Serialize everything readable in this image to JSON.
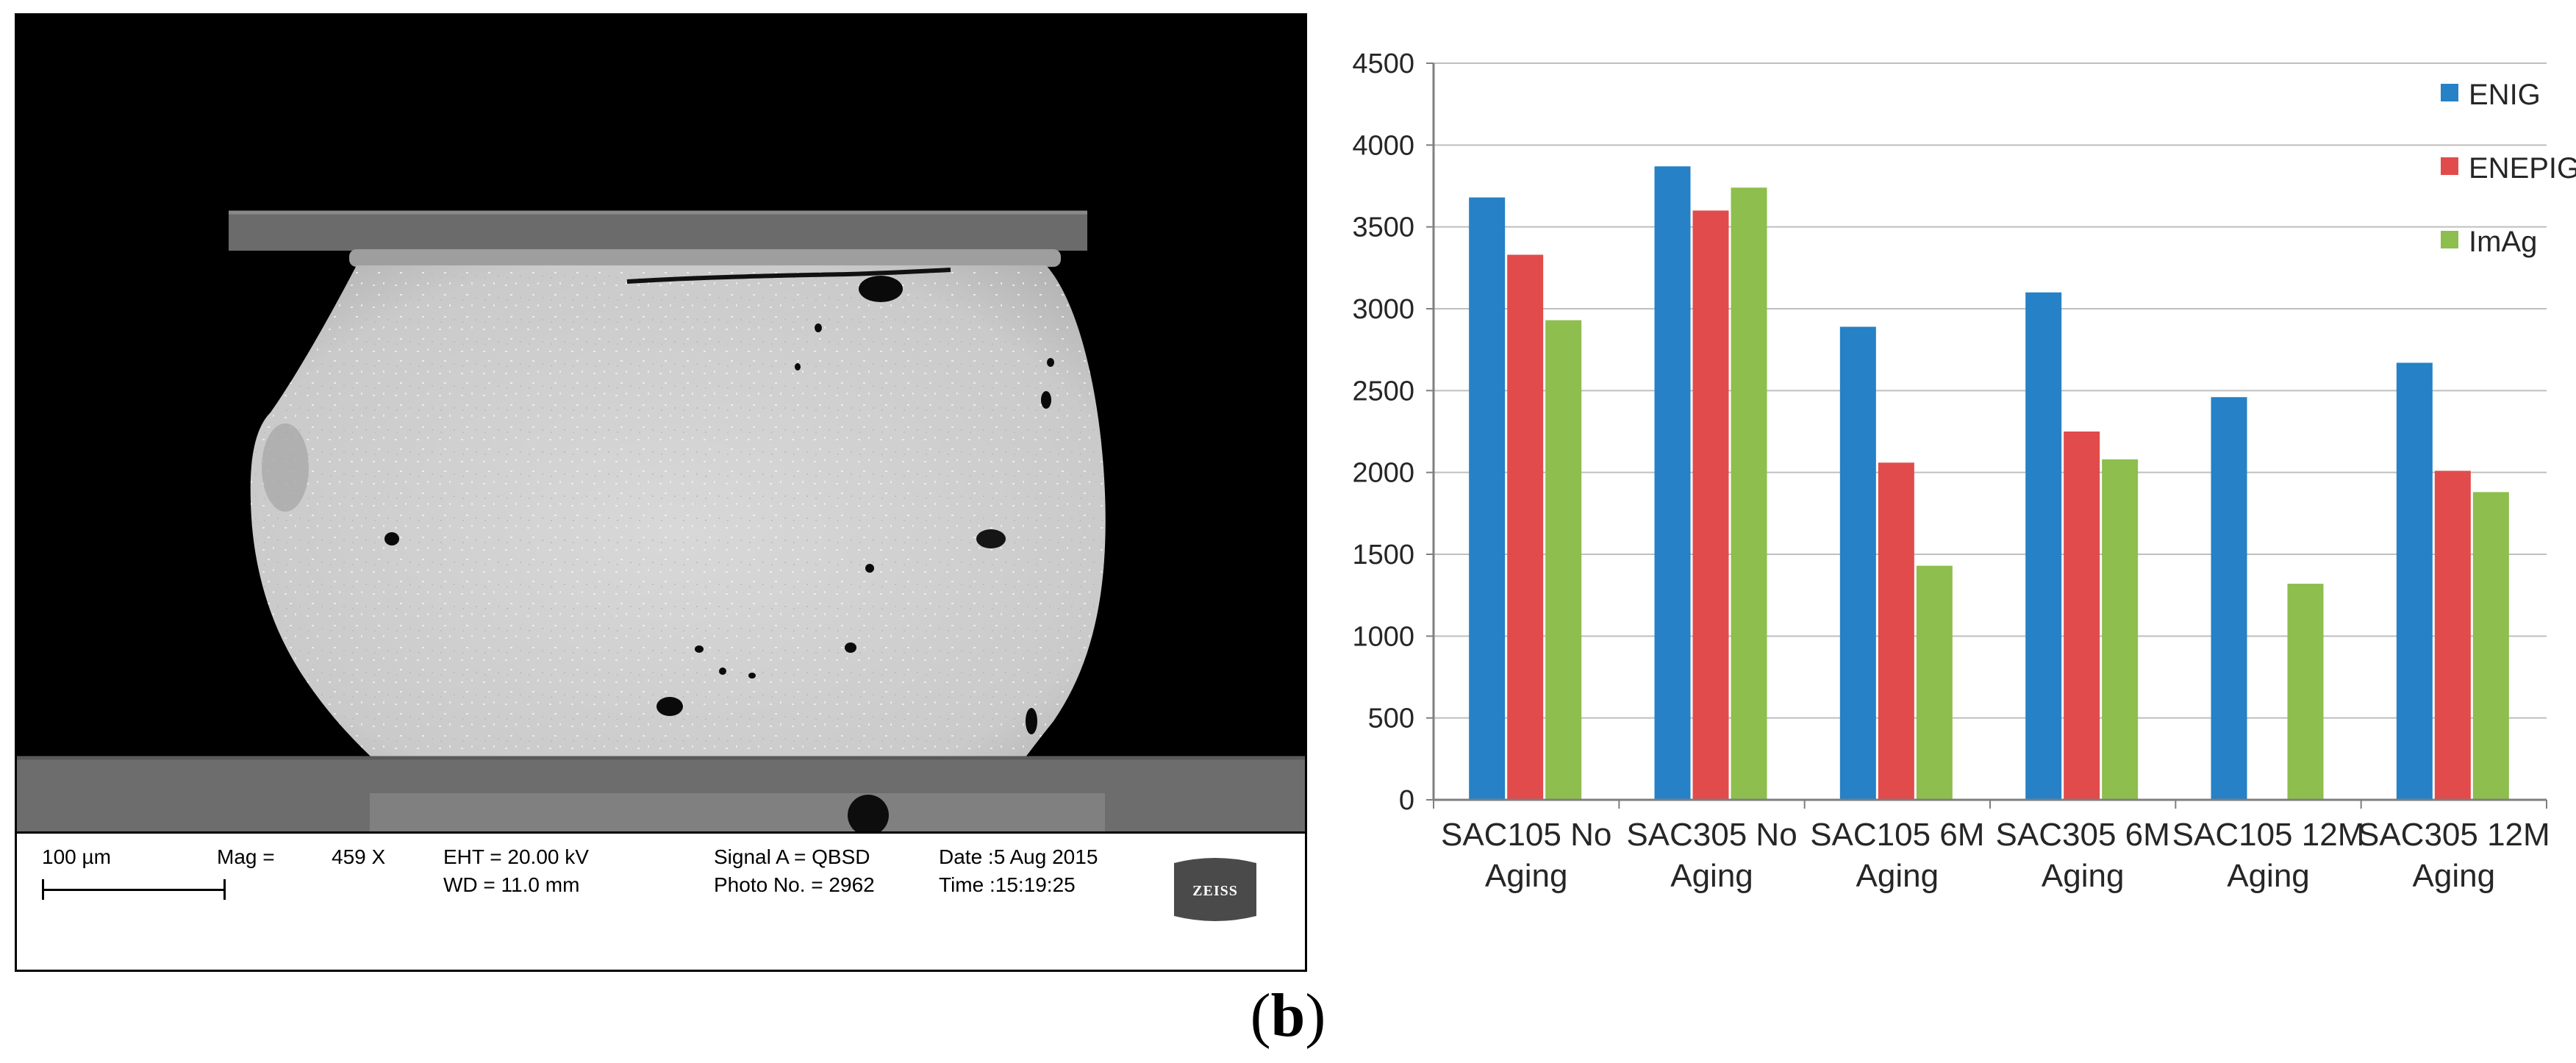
{
  "figure": {
    "label_open": "(",
    "label_letter": "b",
    "label_close": ")"
  },
  "sem": {
    "scale_bar_label": "100 µm",
    "mag_label": "Mag =",
    "mag_value": "459 X",
    "eht": "EHT = 20.00 kV",
    "wd": "WD = 11.0 mm",
    "signal": "Signal A = QBSD",
    "photo_no": "Photo No. = 2962",
    "date": "Date :5 Aug 2015",
    "time": "Time :15:19:25",
    "brand": "ZEISS"
  },
  "colors": {
    "ENIG": "#2681C6",
    "ENEPIG": "#E24B4B",
    "ImAg": "#8DBE4E",
    "grid": "#BFBFBF",
    "axis": "#7F7F7F"
  },
  "chart_data": {
    "type": "bar",
    "title": "",
    "xlabel": "",
    "ylabel": "",
    "ylim": [
      0,
      4500
    ],
    "yticks": [
      0,
      500,
      1000,
      1500,
      2000,
      2500,
      3000,
      3500,
      4000,
      4500
    ],
    "grid": true,
    "legend_position": "top-right",
    "categories": [
      [
        "SAC105 No",
        "Aging"
      ],
      [
        "SAC305 No",
        "Aging"
      ],
      [
        "SAC105 6M",
        "Aging"
      ],
      [
        "SAC305 6M",
        "Aging"
      ],
      [
        "SAC105 12M",
        "Aging"
      ],
      [
        "SAC305 12M",
        "Aging"
      ]
    ],
    "series": [
      {
        "name": "ENIG",
        "values": [
          3680,
          3870,
          2890,
          3100,
          2460,
          2670
        ]
      },
      {
        "name": "ENEPIG",
        "values": [
          3330,
          3600,
          2060,
          2250,
          0,
          2010
        ]
      },
      {
        "name": "ImAg",
        "values": [
          2930,
          3740,
          1430,
          2080,
          1320,
          1880
        ]
      }
    ]
  }
}
